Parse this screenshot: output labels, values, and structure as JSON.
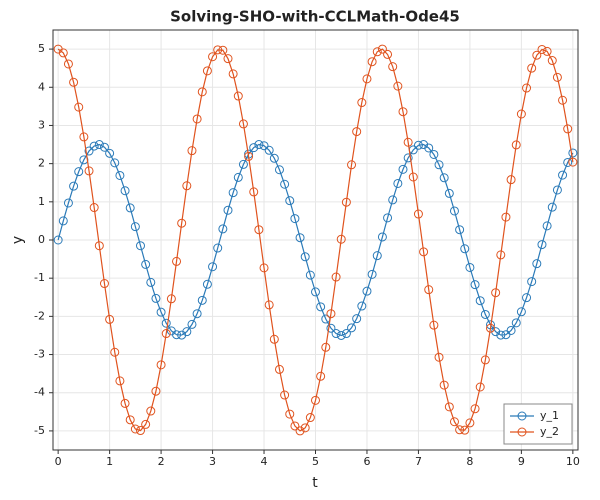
{
  "chart_data": {
    "type": "line",
    "title": "Solving-SHO-with-CCLMath-Ode45",
    "x_label": "t",
    "y_label": "y",
    "x": [
      0,
      0.1,
      0.2,
      0.3,
      0.4,
      0.5,
      0.6,
      0.7,
      0.8,
      0.9,
      1,
      1.1,
      1.2,
      1.3,
      1.4,
      1.5,
      1.6,
      1.7,
      1.8,
      1.9,
      2,
      2.1,
      2.2,
      2.3,
      2.4,
      2.5,
      2.6,
      2.7,
      2.8,
      2.9,
      3,
      3.1,
      3.2,
      3.3,
      3.4,
      3.5,
      3.6,
      3.7,
      3.8,
      3.9,
      4,
      4.1,
      4.2,
      4.3,
      4.4,
      4.5,
      4.6,
      4.7,
      4.8,
      4.9,
      5,
      5.1,
      5.2,
      5.3,
      5.4,
      5.5,
      5.6,
      5.7,
      5.8,
      5.9,
      6,
      6.1,
      6.2,
      6.3,
      6.4,
      6.5,
      6.6,
      6.7,
      6.8,
      6.9,
      7,
      7.1,
      7.2,
      7.3,
      7.4,
      7.5,
      7.6,
      7.7,
      7.8,
      7.9,
      8,
      8.1,
      8.2,
      8.3,
      8.4,
      8.5,
      8.6,
      8.7,
      8.8,
      8.9,
      9,
      9.1,
      9.2,
      9.3,
      9.4,
      9.5,
      9.6,
      9.7,
      9.8,
      9.9,
      10
    ],
    "series": [
      {
        "name": "y_1",
        "color": "#2a7ab8",
        "values": [
          0,
          0.5,
          0.97,
          1.41,
          1.79,
          2.1,
          2.33,
          2.46,
          2.5,
          2.43,
          2.27,
          2.02,
          1.69,
          1.29,
          0.84,
          0.35,
          -0.15,
          -0.64,
          -1.11,
          -1.53,
          -1.89,
          -2.18,
          -2.38,
          -2.48,
          -2.49,
          -2.4,
          -2.21,
          -1.93,
          -1.58,
          -1.16,
          -0.7,
          -0.21,
          0.29,
          0.78,
          1.24,
          1.64,
          1.98,
          2.25,
          2.42,
          2.5,
          2.47,
          2.35,
          2.14,
          1.84,
          1.46,
          1.03,
          0.56,
          0.06,
          -0.44,
          -0.92,
          -1.36,
          -1.75,
          -2.07,
          -2.31,
          -2.45,
          -2.5,
          -2.45,
          -2.3,
          -2.06,
          -1.73,
          -1.34,
          -0.9,
          -0.41,
          0.08,
          0.58,
          1.05,
          1.48,
          1.85,
          2.15,
          2.36,
          2.48,
          2.5,
          2.41,
          2.24,
          1.97,
          1.63,
          1.22,
          0.76,
          0.27,
          -0.23,
          -0.72,
          -1.17,
          -1.59,
          -1.95,
          -2.22,
          -2.4,
          -2.49,
          -2.48,
          -2.37,
          -2.17,
          -1.88,
          -1.51,
          -1.09,
          -0.62,
          -0.12,
          0.37,
          0.86,
          1.31,
          1.7,
          2.03,
          2.28
        ]
      },
      {
        "name": "y_2",
        "color": "#e0531e",
        "values": [
          5,
          4.9,
          4.61,
          4.13,
          3.48,
          2.7,
          1.81,
          0.85,
          -0.15,
          -1.14,
          -2.08,
          -2.94,
          -3.69,
          -4.28,
          -4.71,
          -4.95,
          -4.99,
          -4.83,
          -4.48,
          -3.96,
          -3.27,
          -2.45,
          -1.54,
          -0.56,
          0.44,
          1.42,
          2.34,
          3.17,
          3.88,
          4.43,
          4.8,
          4.98,
          4.97,
          4.75,
          4.35,
          3.77,
          3.04,
          2.19,
          1.26,
          0.27,
          -0.73,
          -1.7,
          -2.6,
          -3.39,
          -4.06,
          -4.56,
          -4.87,
          -5,
          -4.92,
          -4.65,
          -4.2,
          -3.57,
          -2.81,
          -1.93,
          -0.97,
          0.02,
          0.99,
          1.97,
          2.84,
          3.6,
          4.22,
          4.67,
          4.93,
          5,
          4.86,
          4.54,
          4.03,
          3.36,
          2.56,
          1.65,
          0.68,
          -0.31,
          -1.3,
          -2.23,
          -3.07,
          -3.8,
          -4.37,
          -4.76,
          -4.97,
          -4.98,
          -4.79,
          -4.42,
          -3.85,
          -3.14,
          -2.31,
          -1.38,
          -0.39,
          0.6,
          1.58,
          2.49,
          3.3,
          3.98,
          4.5,
          4.84,
          4.99,
          4.94,
          4.7,
          4.26,
          3.66,
          2.91,
          2.04
        ]
      }
    ],
    "xlim": [
      -0.1,
      10.1
    ],
    "xticks": [
      0,
      1,
      2,
      3,
      4,
      5,
      6,
      7,
      8,
      9,
      10
    ],
    "ylim": [
      -5.5,
      5.5
    ],
    "yticks": [
      -5,
      -4,
      -3,
      -2,
      -1,
      0,
      1,
      2,
      3,
      4,
      5
    ],
    "grid": true,
    "legend": "lower right"
  }
}
